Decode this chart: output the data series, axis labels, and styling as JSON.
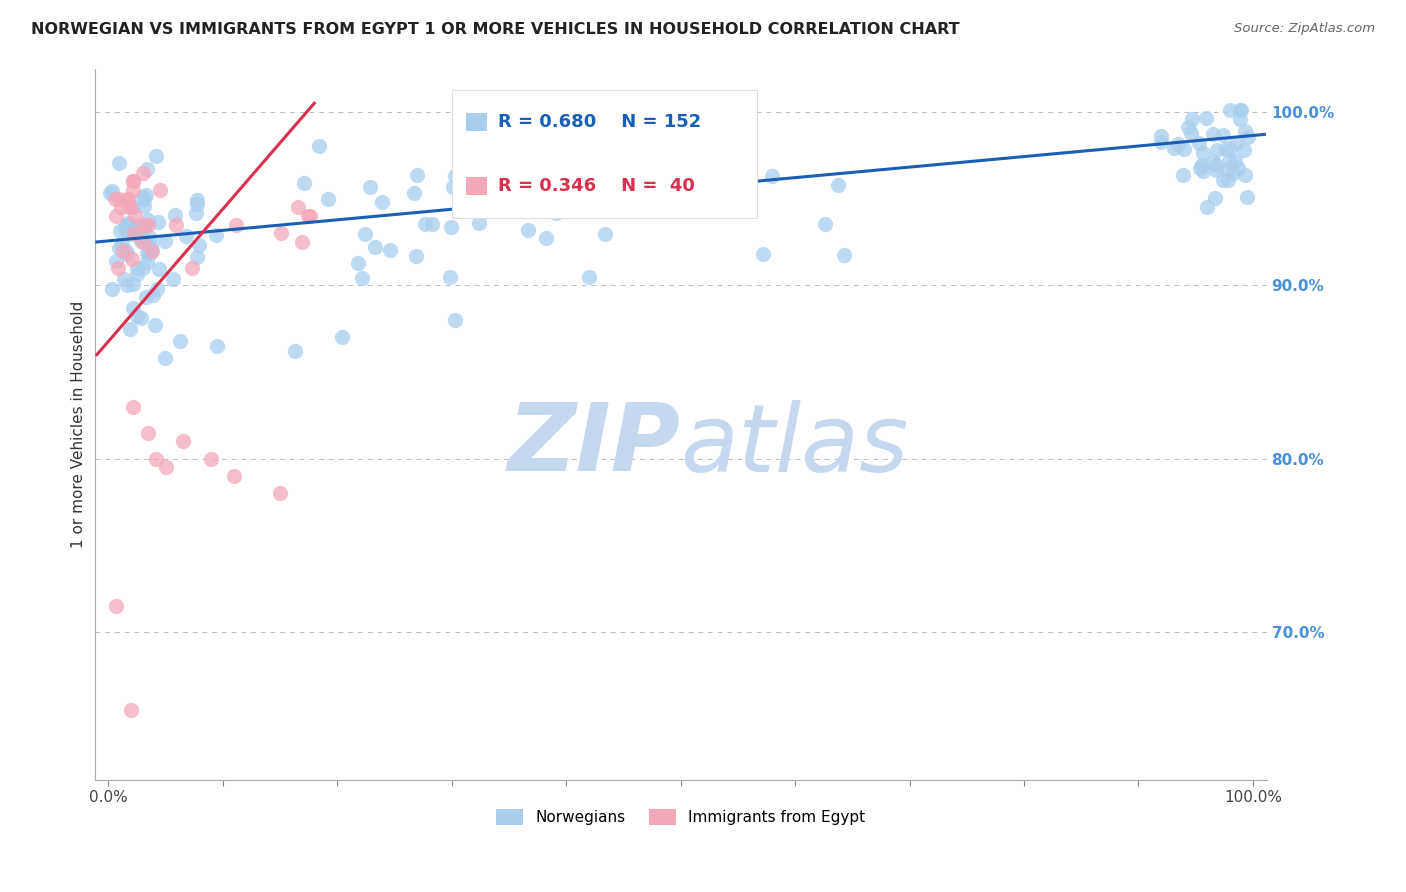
{
  "title": "NORWEGIAN VS IMMIGRANTS FROM EGYPT 1 OR MORE VEHICLES IN HOUSEHOLD CORRELATION CHART",
  "source": "Source: ZipAtlas.com",
  "ylabel": "1 or more Vehicles in Household",
  "legend_blue_r": "R = 0.680",
  "legend_blue_n": "N = 152",
  "legend_pink_r": "R = 0.346",
  "legend_pink_n": "N =  40",
  "legend_label_blue": "Norwegians",
  "legend_label_pink": "Immigrants from Egypt",
  "watermark_zip": "ZIP",
  "watermark_atlas": "atlas",
  "color_blue": "#A8CEEE",
  "color_pink": "#F4A7B9",
  "color_line_blue": "#1A5FB4",
  "color_line_pink": "#D93050",
  "color_axis_right": "#4A90D9",
  "color_grid": "#BBBBBB",
  "color_title": "#222222",
  "color_watermark_zip": "#C5D8EE",
  "color_watermark_atlas": "#C5D8EE"
}
